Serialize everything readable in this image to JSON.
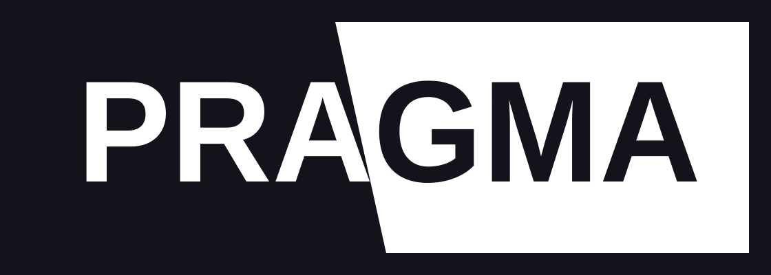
{
  "logo": {
    "wordmark": "PRAGMA",
    "colors": {
      "background": "#16121b",
      "panel": "#ffffff",
      "text_on_dark": "#ffffff",
      "text_on_light": "#16121b"
    }
  }
}
